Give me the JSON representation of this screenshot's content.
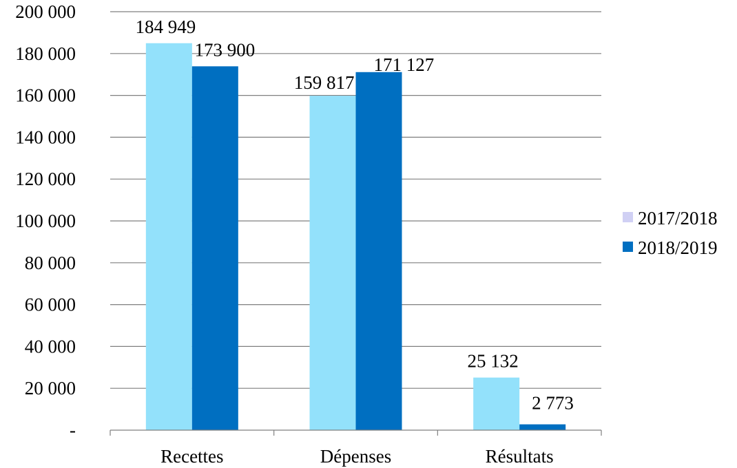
{
  "chart_data": {
    "type": "bar",
    "title": "",
    "xlabel": "",
    "ylabel": "",
    "categories": [
      "Recettes",
      "Dépenses",
      "Résultats"
    ],
    "series": [
      {
        "name": "2017/2018",
        "values": [
          184949,
          159817,
          25132
        ],
        "value_labels": [
          "184 949",
          "159 817",
          "25 132"
        ],
        "bar_color": "#93e1fb",
        "legend_swatch_color": "#d0d0f4"
      },
      {
        "name": "2018/2019",
        "values": [
          173900,
          171127,
          2773
        ],
        "value_labels": [
          "173 900",
          "171 127",
          "2 773"
        ],
        "bar_color": "#006fc1",
        "legend_swatch_color": "#006fc1"
      }
    ],
    "ylim": [
      0,
      200000
    ],
    "y_ticks": [
      0,
      20000,
      40000,
      60000,
      80000,
      100000,
      120000,
      140000,
      160000,
      180000,
      200000
    ],
    "y_tick_labels": [
      "-",
      "20 000",
      "40 000",
      "60 000",
      "80 000",
      "100 000",
      "120 000",
      "140 000",
      "160 000",
      "180 000",
      "200 000"
    ],
    "grid": true,
    "legend_position": "right"
  }
}
